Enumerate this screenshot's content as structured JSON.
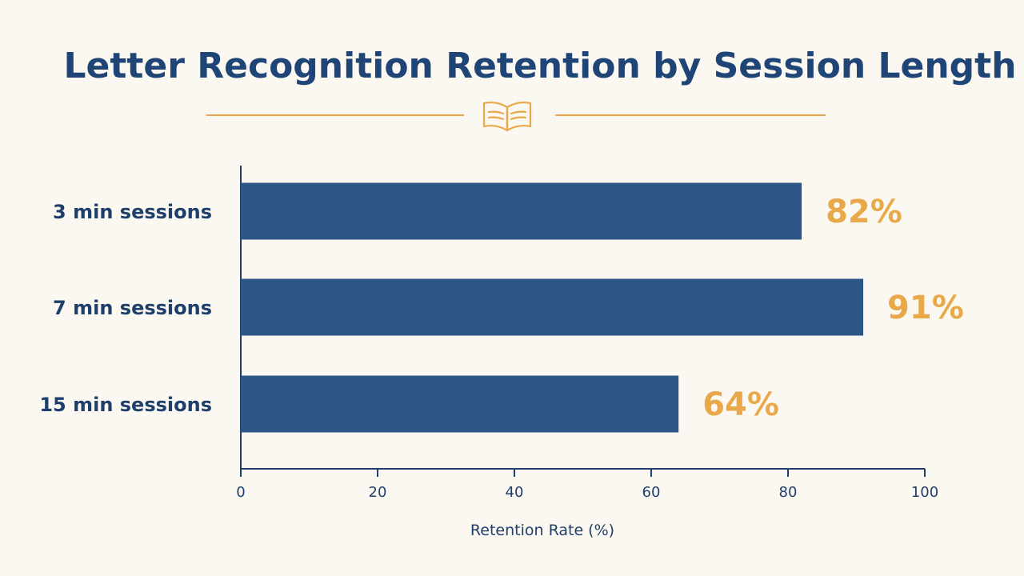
{
  "colors": {
    "background": "#fbf8f1",
    "title": "#1f4577",
    "bar": "#2d5586",
    "accent": "#e9a94a",
    "axis": "#1f3f6b"
  },
  "icons": {
    "divider_icon": "open-book-icon"
  },
  "chart_data": {
    "type": "bar",
    "orientation": "horizontal",
    "title": "Letter Recognition Retention by Session Length",
    "categories": [
      "3 min sessions",
      "7 min sessions",
      "15 min sessions"
    ],
    "values": [
      82,
      91,
      64
    ],
    "value_labels": [
      "82%",
      "91%",
      "64%"
    ],
    "xlabel": "Retention Rate (%)",
    "ylabel": "",
    "xlim": [
      0,
      100
    ],
    "x_ticks": [
      0,
      20,
      40,
      60,
      80,
      100
    ],
    "x_tick_labels": [
      "0",
      "20",
      "40",
      "60",
      "80",
      "100"
    ],
    "grid": false,
    "legend": "none"
  }
}
